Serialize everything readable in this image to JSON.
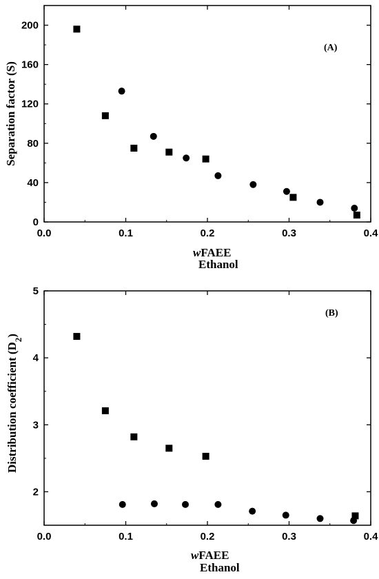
{
  "chart_data": [
    {
      "type": "scatter",
      "panel_label": "(A)",
      "xlabel_prefix": "w",
      "xlabel_main": "FAEE",
      "xlabel_sub": "Ethanol",
      "ylabel": "Separation factor (S)",
      "xlim": [
        0.0,
        0.4
      ],
      "ylim": [
        0,
        220
      ],
      "xticks": [
        "0.0",
        "0.1",
        "0.2",
        "0.3",
        "0.4"
      ],
      "xtick_values": [
        0.0,
        0.1,
        0.2,
        0.3,
        0.4
      ],
      "yticks": [
        "0",
        "40",
        "80",
        "120",
        "160",
        "200"
      ],
      "ytick_values": [
        0,
        40,
        80,
        120,
        160,
        200
      ],
      "grid": false,
      "series": [
        {
          "marker": "square",
          "x": [
            0.04,
            0.075,
            0.11,
            0.153,
            0.198,
            0.305,
            0.383
          ],
          "y": [
            196,
            108,
            75,
            71,
            64,
            25,
            7
          ]
        },
        {
          "marker": "circle",
          "x": [
            0.095,
            0.134,
            0.174,
            0.213,
            0.256,
            0.297,
            0.338,
            0.38
          ],
          "y": [
            133,
            87,
            65,
            47,
            38,
            31,
            20,
            14
          ]
        }
      ]
    },
    {
      "type": "scatter",
      "panel_label": "(B)",
      "xlabel_prefix": "w",
      "xlabel_main": "FAEE",
      "xlabel_sub": "Ethanol",
      "ylabel_main": "Distribution coefficient (D",
      "ylabel_sub": "2",
      "ylabel_close": ")",
      "xlim": [
        0.0,
        0.4
      ],
      "ylim": [
        1.5,
        5.0
      ],
      "xticks": [
        "0.0",
        "0.1",
        "0.2",
        "0.3",
        "0.4"
      ],
      "xtick_values": [
        0.0,
        0.1,
        0.2,
        0.3,
        0.4
      ],
      "yticks": [
        "2",
        "3",
        "4",
        "5"
      ],
      "ytick_values": [
        2,
        3,
        4,
        5
      ],
      "grid": false,
      "series": [
        {
          "marker": "square",
          "x": [
            0.04,
            0.075,
            0.11,
            0.153,
            0.198,
            0.381
          ],
          "y": [
            4.32,
            3.21,
            2.82,
            2.65,
            2.53,
            1.64
          ]
        },
        {
          "marker": "circle",
          "x": [
            0.096,
            0.135,
            0.173,
            0.213,
            0.255,
            0.296,
            0.338,
            0.379
          ],
          "y": [
            1.81,
            1.82,
            1.81,
            1.81,
            1.71,
            1.65,
            1.6,
            1.57
          ]
        }
      ]
    }
  ]
}
